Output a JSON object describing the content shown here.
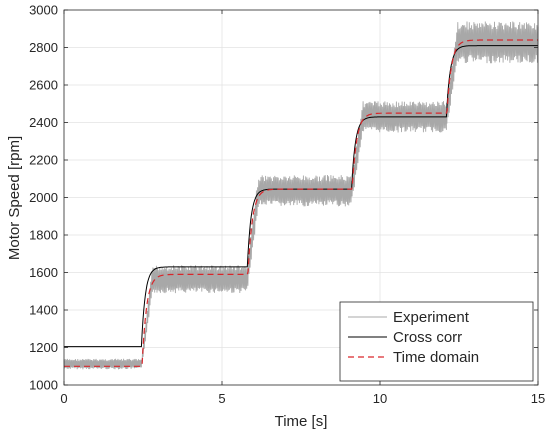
{
  "chart_data": {
    "type": "line",
    "xlabel": "Time [s]",
    "ylabel": "Motor Speed [rpm]",
    "xlim": [
      0,
      15
    ],
    "ylim": [
      1000,
      3000
    ],
    "xticks": [
      0,
      5,
      10,
      15
    ],
    "yticks": [
      1000,
      1200,
      1400,
      1600,
      1800,
      2000,
      2200,
      2400,
      2600,
      2800,
      3000
    ],
    "grid": true,
    "legend_position": "bottom-right",
    "step_times": [
      2.45,
      5.8,
      9.1,
      12.1
    ],
    "series": [
      {
        "name": "Experiment",
        "style": "band",
        "color": "#a8a8a8",
        "levels": [
          {
            "t_start": 0.0,
            "t_end": 2.45,
            "low": 1095,
            "high": 1140
          },
          {
            "t_start": 2.45,
            "t_end": 5.8,
            "low": 1520,
            "high": 1640
          },
          {
            "t_start": 5.8,
            "t_end": 9.1,
            "low": 1985,
            "high": 2120
          },
          {
            "t_start": 9.1,
            "t_end": 12.1,
            "low": 2380,
            "high": 2515
          },
          {
            "t_start": 12.1,
            "t_end": 15.0,
            "low": 2760,
            "high": 2940
          }
        ]
      },
      {
        "name": "Cross corr",
        "style": "solid",
        "color": "#000000",
        "levels": [
          1205,
          1630,
          2045,
          2430,
          2810
        ]
      },
      {
        "name": "Time domain",
        "style": "dashed",
        "color": "#d9262b",
        "levels": [
          1100,
          1590,
          2045,
          2450,
          2840
        ]
      }
    ]
  }
}
